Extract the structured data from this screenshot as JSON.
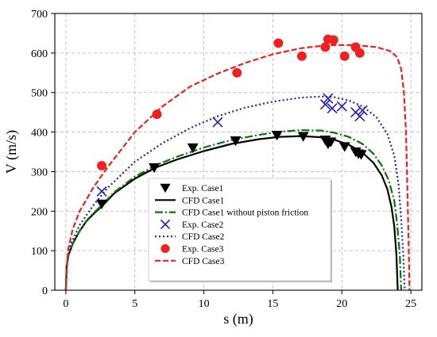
{
  "chart_data": {
    "type": "line",
    "xlabel": "s (m)",
    "ylabel": "V (m/s)",
    "xlim": [
      -0.8,
      25.8
    ],
    "ylim": [
      0,
      700
    ],
    "xticks": [
      0,
      5,
      10,
      15,
      20,
      25
    ],
    "yticks": [
      0,
      100,
      200,
      300,
      400,
      500,
      600,
      700
    ],
    "grid": true,
    "legend_position": "lower-center",
    "series": [
      {
        "name": "Exp. Case1",
        "kind": "scatter",
        "marker": "triangle-down",
        "color": "#000000",
        "x": [
          2.6,
          6.4,
          9.2,
          12.3,
          15.3,
          17.2,
          18.8,
          19.0,
          19.2,
          20.2,
          21.0,
          21.2,
          21.4
        ],
        "y": [
          218,
          310,
          360,
          378,
          392,
          389,
          380,
          370,
          375,
          363,
          350,
          345,
          343
        ]
      },
      {
        "name": "CFD Case1",
        "kind": "line",
        "dash": "solid",
        "color": "#000000",
        "x": [
          0.0,
          0.05,
          0.2,
          0.5,
          1.0,
          1.5,
          2.0,
          2.6,
          3.5,
          5.0,
          6.5,
          8.0,
          10.0,
          12.0,
          14.0,
          15.5,
          17.0,
          18.5,
          19.5,
          20.5,
          21.5,
          22.3,
          22.9,
          23.3,
          23.6,
          23.8,
          23.95,
          24.05
        ],
        "y": [
          0,
          60,
          90,
          118,
          150,
          175,
          193,
          212,
          245,
          282,
          310,
          330,
          352,
          370,
          382,
          388,
          390,
          387,
          380,
          368,
          348,
          322,
          290,
          255,
          210,
          160,
          90,
          0
        ]
      },
      {
        "name": "CFD Case1 without piston friction",
        "kind": "line",
        "dash": "dashdot",
        "color": "#007a00",
        "x": [
          0.0,
          0.05,
          0.2,
          0.5,
          1.0,
          1.5,
          2.0,
          2.6,
          3.5,
          5.0,
          6.5,
          8.0,
          10.0,
          12.0,
          14.0,
          15.5,
          17.0,
          18.5,
          19.5,
          20.5,
          21.5,
          22.3,
          22.9,
          23.4,
          23.8,
          24.0,
          24.2,
          24.3
        ],
        "y": [
          0,
          60,
          90,
          118,
          150,
          176,
          195,
          215,
          248,
          287,
          316,
          337,
          361,
          380,
          393,
          401,
          405,
          404,
          398,
          388,
          370,
          345,
          315,
          278,
          225,
          170,
          90,
          0
        ]
      },
      {
        "name": "Exp. Case2",
        "kind": "scatter",
        "marker": "x",
        "color": "#1f1fbf",
        "x": [
          2.6,
          11.0,
          18.8,
          19.0,
          19.3,
          20.0,
          21.0,
          21.3,
          21.5
        ],
        "y": [
          250,
          425,
          470,
          485,
          460,
          465,
          450,
          440,
          455
        ]
      },
      {
        "name": "CFD Case2",
        "kind": "line",
        "dash": "dotted",
        "color": "#1f1fbf",
        "x": [
          0.0,
          0.1,
          0.4,
          1.0,
          2.0,
          3.0,
          5.0,
          7.0,
          9.0,
          11.0,
          13.0,
          15.0,
          17.0,
          18.5,
          19.5,
          20.5,
          21.5,
          22.5,
          23.3,
          23.8,
          24.1,
          24.3,
          24.45,
          24.55
        ],
        "y": [
          0,
          80,
          120,
          165,
          215,
          258,
          325,
          372,
          410,
          440,
          462,
          477,
          487,
          490,
          488,
          480,
          465,
          438,
          395,
          340,
          270,
          180,
          90,
          0
        ]
      },
      {
        "name": "Exp. Case3",
        "kind": "scatter",
        "marker": "circle",
        "color": "#ee2020",
        "x": [
          2.6,
          6.6,
          12.4,
          15.4,
          17.1,
          18.8,
          19.0,
          19.4,
          20.2,
          21.0,
          21.3
        ],
        "y": [
          315,
          445,
          550,
          625,
          592,
          615,
          635,
          633,
          592,
          615,
          600
        ]
      },
      {
        "name": "CFD Case3",
        "kind": "line",
        "dash": "dashed",
        "color": "#ee2020",
        "x": [
          0.0,
          0.15,
          0.5,
          1.0,
          2.0,
          3.0,
          5.0,
          7.0,
          9.0,
          11.0,
          13.0,
          15.0,
          17.0,
          19.0,
          21.0,
          22.5,
          23.5,
          24.0,
          24.3,
          24.5,
          24.65,
          24.75,
          24.85,
          24.9
        ],
        "y": [
          0,
          100,
          155,
          200,
          260,
          310,
          400,
          465,
          515,
          548,
          575,
          597,
          612,
          620,
          620,
          615,
          605,
          590,
          560,
          500,
          400,
          250,
          100,
          0
        ]
      }
    ]
  }
}
